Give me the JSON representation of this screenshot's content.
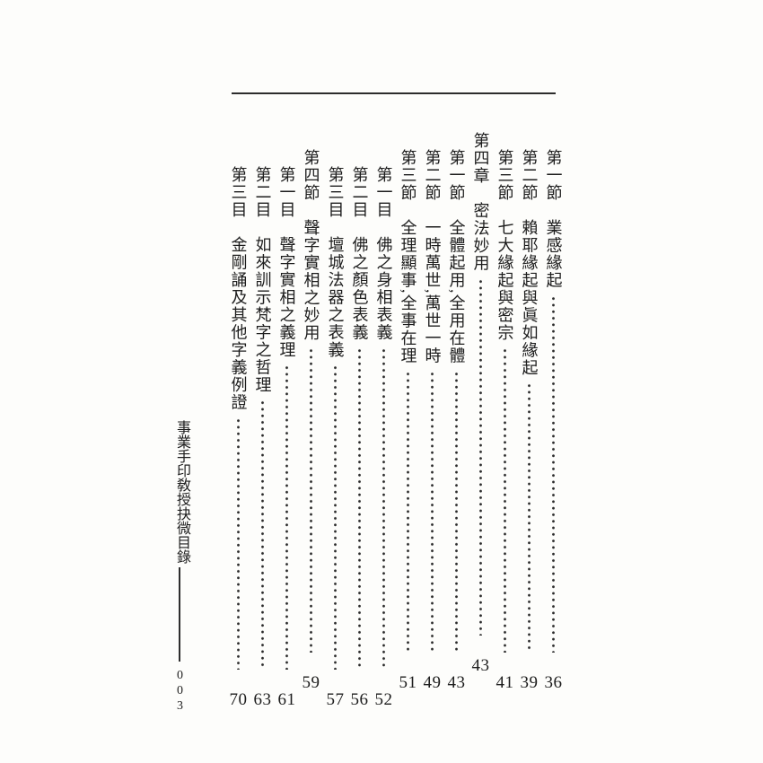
{
  "page": {
    "background_color": "#fdfdfb",
    "ink_color": "#1d1d1d",
    "kind": "book table of contents (vertical traditional Chinese, right-to-left)"
  },
  "margin": {
    "book_title": "事業手印敎授抉微目錄",
    "folio_number": "003"
  },
  "toc": {
    "entries": [
      {
        "level": "section",
        "label": "第一節",
        "title": "業感緣起",
        "page": "36"
      },
      {
        "level": "section",
        "label": "第二節",
        "title": "賴耶緣起與眞如緣起",
        "page": "39"
      },
      {
        "level": "section",
        "label": "第三節",
        "title": "七大緣起與密宗",
        "page": "41"
      },
      {
        "level": "chapter",
        "label": "第四章",
        "title": "密法妙用",
        "page": "43"
      },
      {
        "level": "section",
        "label": "第一節",
        "title": "全體起用,全用在體",
        "page": "43"
      },
      {
        "level": "section",
        "label": "第二節",
        "title": "一時萬世,萬世一時",
        "page": "49"
      },
      {
        "level": "section",
        "label": "第三節",
        "title": "全理顯事,全事在理",
        "page": "51"
      },
      {
        "level": "item",
        "label": "第一目",
        "title": "佛之身相表義",
        "page": "52"
      },
      {
        "level": "item",
        "label": "第二目",
        "title": "佛之顏色表義",
        "page": "56"
      },
      {
        "level": "item",
        "label": "第三目",
        "title": "壇城法器之表義",
        "page": "57"
      },
      {
        "level": "section",
        "label": "第四節",
        "title": "聲字實相之妙用",
        "page": "59"
      },
      {
        "level": "item",
        "label": "第一目",
        "title": "聲字實相之義理",
        "page": "61"
      },
      {
        "level": "item",
        "label": "第二目",
        "title": "如來訓示梵字之哲理",
        "page": "63"
      },
      {
        "level": "item",
        "label": "第三目",
        "title": "金剛誦及其他字義例證",
        "page": "70"
      }
    ]
  }
}
